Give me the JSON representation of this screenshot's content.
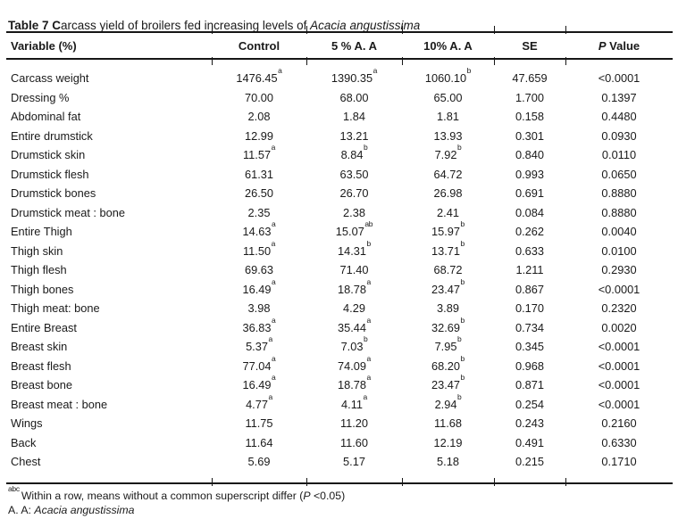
{
  "page": {
    "background": "#ffffff",
    "text_color": "#1a1a1a",
    "rule_color": "#161616"
  },
  "caption": {
    "bold": "Table 7 C",
    "regular": "arcass yield of broilers fed increasing levels of ",
    "italic": "Acacia angustissima"
  },
  "table": {
    "headers": {
      "variable": "Variable (%)",
      "control": "Control",
      "five_pct": "5 % A. A",
      "ten_pct": "10% A. A",
      "se": "SE",
      "p_italic": "P",
      "p_rest": " Value"
    },
    "rows": [
      {
        "variable": "Carcass weight",
        "control": "1476.45",
        "control_sup": "a",
        "five": "1390.35",
        "five_sup": "a",
        "ten": "1060.10",
        "ten_sup": "b",
        "se": "47.659",
        "p": "<0.0001"
      },
      {
        "variable": "Dressing %",
        "control": "70.00",
        "control_sup": "",
        "five": "68.00",
        "five_sup": "",
        "ten": "65.00",
        "ten_sup": "",
        "se": "1.700",
        "p": "0.1397"
      },
      {
        "variable": "Abdominal fat",
        "control": "2.08",
        "control_sup": "",
        "five": "1.84",
        "five_sup": "",
        "ten": "1.81",
        "ten_sup": "",
        "se": "0.158",
        "p": "0.4480"
      },
      {
        "variable": "Entire drumstick",
        "control": "12.99",
        "control_sup": "",
        "five": "13.21",
        "five_sup": "",
        "ten": "13.93",
        "ten_sup": "",
        "se": "0.301",
        "p": "0.0930"
      },
      {
        "variable": "Drumstick skin",
        "control": "11.57",
        "control_sup": "a",
        "five": "8.84",
        "five_sup": "b",
        "ten": "7.92",
        "ten_sup": "b",
        "se": "0.840",
        "p": "0.0110"
      },
      {
        "variable": "Drumstick flesh",
        "control": "61.31",
        "control_sup": "",
        "five": "63.50",
        "five_sup": "",
        "ten": "64.72",
        "ten_sup": "",
        "se": "0.993",
        "p": "0.0650"
      },
      {
        "variable": "Drumstick bones",
        "control": "26.50",
        "control_sup": "",
        "five": "26.70",
        "five_sup": "",
        "ten": "26.98",
        "ten_sup": "",
        "se": "0.691",
        "p": "0.8880"
      },
      {
        "variable": "Drumstick meat : bone",
        "control": "2.35",
        "control_sup": "",
        "five": "2.38",
        "five_sup": "",
        "ten": "2.41",
        "ten_sup": "",
        "se": "0.084",
        "p": "0.8880"
      },
      {
        "variable": "Entire Thigh",
        "control": "14.63",
        "control_sup": "a",
        "five": "15.07",
        "five_sup": "ab",
        "ten": "15.97",
        "ten_sup": "b",
        "se": "0.262",
        "p": "0.0040"
      },
      {
        "variable": "Thigh skin",
        "control": "11.50",
        "control_sup": "a",
        "five": "14.31",
        "five_sup": "b",
        "ten": "13.71",
        "ten_sup": "b",
        "se": "0.633",
        "p": "0.0100"
      },
      {
        "variable": "Thigh flesh",
        "control": "69.63",
        "control_sup": "",
        "five": "71.40",
        "five_sup": "",
        "ten": "68.72",
        "ten_sup": "",
        "se": "1.211",
        "p": "0.2930"
      },
      {
        "variable": "Thigh bones",
        "control": "16.49",
        "control_sup": "a",
        "five": "18.78",
        "five_sup": "a",
        "ten": "23.47",
        "ten_sup": "b",
        "se": "0.867",
        "p": "<0.0001"
      },
      {
        "variable": "Thigh meat: bone",
        "control": "3.98",
        "control_sup": "",
        "five": "4.29",
        "five_sup": "",
        "ten": "3.89",
        "ten_sup": "",
        "se": "0.170",
        "p": "0.2320"
      },
      {
        "variable": "Entire Breast",
        "control": "36.83",
        "control_sup": "a",
        "five": "35.44",
        "five_sup": "a",
        "ten": "32.69",
        "ten_sup": "b",
        "se": "0.734",
        "p": "0.0020"
      },
      {
        "variable": "Breast skin",
        "control": "5.37",
        "control_sup": "a",
        "five": "7.03",
        "five_sup": "b",
        "ten": "7.95",
        "ten_sup": "b",
        "se": "0.345",
        "p": "<0.0001"
      },
      {
        "variable": "Breast flesh",
        "control": "77.04",
        "control_sup": "a",
        "five": "74.09",
        "five_sup": "a",
        "ten": "68.20",
        "ten_sup": "b",
        "se": "0.968",
        "p": "<0.0001"
      },
      {
        "variable": "Breast bone",
        "control": "16.49",
        "control_sup": "a",
        "five": "18.78",
        "five_sup": "a",
        "ten": "23.47",
        "ten_sup": "b",
        "se": "0.871",
        "p": "<0.0001"
      },
      {
        "variable": "Breast meat : bone",
        "control": "4.77",
        "control_sup": "a",
        "five": "4.11",
        "five_sup": "a",
        "ten": "2.94",
        "ten_sup": "b",
        "se": "0.254",
        "p": "<0.0001"
      },
      {
        "variable": "Wings",
        "control": "11.75",
        "control_sup": "",
        "five": "11.20",
        "five_sup": "",
        "ten": "11.68",
        "ten_sup": "",
        "se": "0.243",
        "p": "0.2160"
      },
      {
        "variable": "Back",
        "control": "11.64",
        "control_sup": "",
        "five": "11.60",
        "five_sup": "",
        "ten": "12.19",
        "ten_sup": "",
        "se": "0.491",
        "p": "0.6330"
      },
      {
        "variable": "Chest",
        "control": "5.69",
        "control_sup": "",
        "five": "5.17",
        "five_sup": "",
        "ten": "5.18",
        "ten_sup": "",
        "se": "0.215",
        "p": "0.1710"
      }
    ]
  },
  "footnotes": {
    "significance": {
      "sup": "abc",
      "pre": "Within a row, means without a common superscript differ (",
      "italic": "P",
      "post": " <0.05)"
    },
    "abbreviation": {
      "pre": "A. A: ",
      "italic": "Acacia angustissima",
      "post": ""
    }
  }
}
